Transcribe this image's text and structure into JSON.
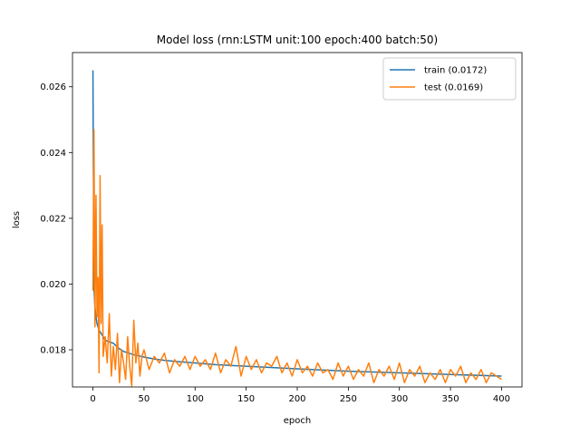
{
  "chart_data": {
    "type": "line",
    "title": "Model loss (rnn:LSTM unit:100 epoch:400 batch:50)",
    "xlabel": "epoch",
    "ylabel": "loss",
    "xlim": [
      -20,
      420
    ],
    "ylim": [
      0.01687,
      0.02704
    ],
    "xticks": [
      0,
      50,
      100,
      150,
      200,
      250,
      300,
      350,
      400
    ],
    "xtick_labels": [
      "0",
      "50",
      "100",
      "150",
      "200",
      "250",
      "300",
      "350",
      "400"
    ],
    "yticks": [
      0.018,
      0.02,
      0.022,
      0.024,
      0.026
    ],
    "ytick_labels": [
      "0.018",
      "0.020",
      "0.022",
      "0.024",
      "0.026"
    ],
    "grid": false,
    "legend_position": "top-right",
    "series": [
      {
        "name": "train (0.0172)",
        "color": "#1f77b4",
        "x": [
          0,
          1,
          2,
          3,
          4,
          5,
          6,
          8,
          10,
          12,
          15,
          20,
          25,
          30,
          40,
          50,
          60,
          70,
          80,
          100,
          120,
          150,
          200,
          250,
          300,
          350,
          400
        ],
        "y": [
          0.0265,
          0.0199,
          0.0193,
          0.019,
          0.0188,
          0.0187,
          0.0186,
          0.0185,
          0.0184,
          0.0183,
          0.01825,
          0.0182,
          0.01805,
          0.01795,
          0.01785,
          0.01778,
          0.01772,
          0.01768,
          0.01765,
          0.0176,
          0.01755,
          0.0175,
          0.01742,
          0.01735,
          0.0173,
          0.01725,
          0.0172
        ]
      },
      {
        "name": "test (0.0169)",
        "color": "#ff7f0e",
        "x": [
          0,
          1,
          2,
          3,
          4,
          5,
          6,
          7,
          8,
          9,
          10,
          12,
          14,
          16,
          18,
          20,
          22,
          24,
          26,
          28,
          30,
          32,
          34,
          36,
          38,
          40,
          42,
          44,
          46,
          48,
          50,
          55,
          60,
          65,
          70,
          75,
          80,
          85,
          90,
          95,
          100,
          105,
          110,
          115,
          120,
          125,
          130,
          135,
          140,
          145,
          150,
          155,
          160,
          165,
          170,
          175,
          180,
          185,
          190,
          195,
          200,
          205,
          210,
          215,
          220,
          225,
          230,
          235,
          240,
          245,
          250,
          255,
          260,
          265,
          270,
          275,
          280,
          285,
          290,
          295,
          300,
          305,
          310,
          315,
          320,
          325,
          330,
          335,
          340,
          345,
          350,
          355,
          360,
          365,
          370,
          375,
          380,
          385,
          390,
          395,
          400
        ],
        "y": [
          0.0198,
          0.0247,
          0.0187,
          0.0227,
          0.019,
          0.0202,
          0.0173,
          0.0233,
          0.0188,
          0.0218,
          0.0178,
          0.0184,
          0.0176,
          0.0191,
          0.0172,
          0.0181,
          0.0174,
          0.0185,
          0.017,
          0.018,
          0.0176,
          0.0171,
          0.0184,
          0.0175,
          0.0169,
          0.0189,
          0.0176,
          0.0182,
          0.0172,
          0.0178,
          0.018,
          0.0174,
          0.0178,
          0.0176,
          0.0179,
          0.0173,
          0.0177,
          0.0175,
          0.0178,
          0.0174,
          0.0178,
          0.0175,
          0.0177,
          0.0174,
          0.0179,
          0.0173,
          0.0177,
          0.0175,
          0.0181,
          0.0172,
          0.0178,
          0.0174,
          0.0177,
          0.0173,
          0.0176,
          0.0175,
          0.0178,
          0.0173,
          0.0176,
          0.0172,
          0.0177,
          0.0173,
          0.0175,
          0.0172,
          0.0176,
          0.0173,
          0.0174,
          0.0171,
          0.0176,
          0.0172,
          0.0175,
          0.0171,
          0.0174,
          0.0172,
          0.0176,
          0.017,
          0.0174,
          0.0172,
          0.0175,
          0.0171,
          0.0176,
          0.017,
          0.0174,
          0.0172,
          0.0175,
          0.017,
          0.0173,
          0.0171,
          0.0174,
          0.017,
          0.0174,
          0.0172,
          0.0175,
          0.017,
          0.0173,
          0.0171,
          0.0174,
          0.017,
          0.0173,
          0.0172,
          0.0171
        ]
      }
    ]
  }
}
